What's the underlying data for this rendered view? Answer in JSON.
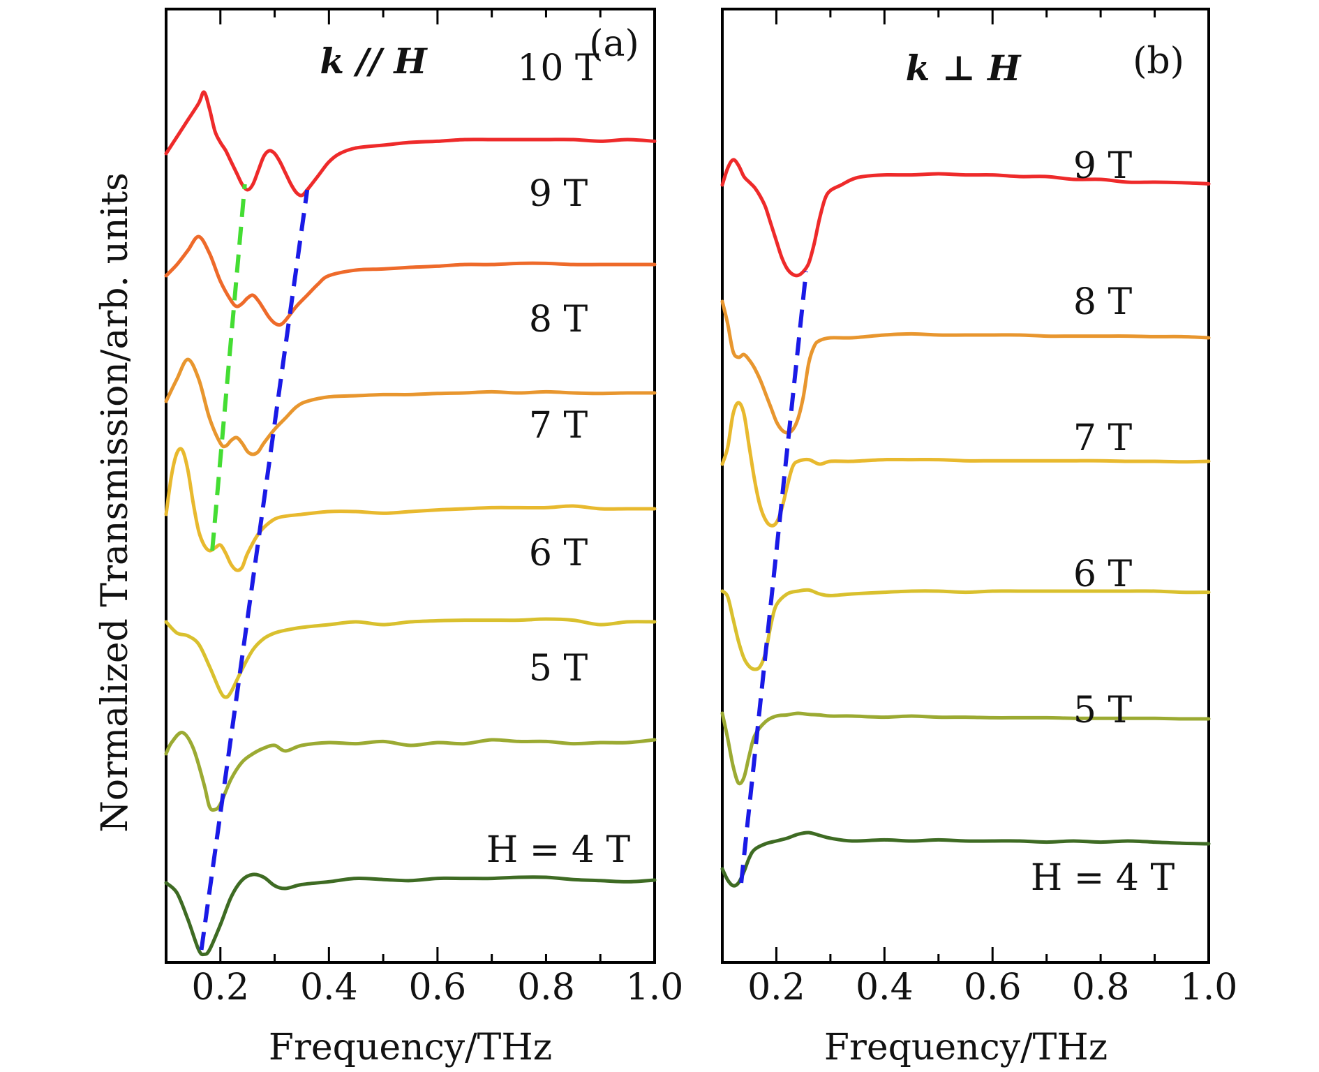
{
  "ylabel": "Normalized Transmission/arb. units",
  "chart_data": [
    {
      "type": "line",
      "panel_label": "(a)",
      "geometry_label": "k // H",
      "xlabel": "Frequency/THz",
      "xlim": [
        0.1,
        1.0
      ],
      "xticks": [
        "0.2",
        "0.4",
        "0.6",
        "0.8",
        "1.0"
      ],
      "yticks": "none",
      "grid": false,
      "series": [
        {
          "name": "H = 4 T",
          "color": "#3E6B23",
          "x": [
            0.1,
            0.12,
            0.14,
            0.16,
            0.17,
            0.18,
            0.2,
            0.22,
            0.24,
            0.26,
            0.28,
            0.3,
            0.32,
            0.35,
            0.4,
            0.45,
            0.5,
            0.55,
            0.6,
            0.65,
            0.7,
            0.75,
            0.8,
            0.85,
            0.9,
            0.95,
            1.0
          ],
          "y": [
            0.0,
            -0.18,
            -0.65,
            -1.2,
            -1.28,
            -1.2,
            -0.75,
            -0.25,
            0.05,
            0.15,
            0.1,
            -0.05,
            -0.1,
            -0.03,
            0.02,
            0.08,
            0.06,
            0.04,
            0.08,
            0.08,
            0.08,
            0.1,
            0.1,
            0.06,
            0.04,
            0.02,
            0.05
          ]
        },
        {
          "name": "5 T",
          "color": "#9BAA32",
          "x": [
            0.1,
            0.11,
            0.13,
            0.15,
            0.17,
            0.18,
            0.19,
            0.2,
            0.22,
            0.24,
            0.26,
            0.28,
            0.3,
            0.32,
            0.35,
            0.4,
            0.45,
            0.5,
            0.55,
            0.6,
            0.65,
            0.7,
            0.75,
            0.8,
            0.85,
            0.9,
            0.95,
            1.0
          ],
          "y": [
            0.0,
            0.2,
            0.38,
            0.1,
            -0.55,
            -0.95,
            -1.0,
            -0.9,
            -0.45,
            -0.15,
            0.0,
            0.1,
            0.15,
            0.05,
            0.15,
            0.2,
            0.18,
            0.22,
            0.15,
            0.2,
            0.18,
            0.25,
            0.22,
            0.22,
            0.18,
            0.2,
            0.2,
            0.25
          ]
        },
        {
          "name": "6 T",
          "color": "#D9C02E",
          "x": [
            0.1,
            0.12,
            0.14,
            0.16,
            0.18,
            0.2,
            0.21,
            0.22,
            0.24,
            0.26,
            0.28,
            0.3,
            0.32,
            0.35,
            0.4,
            0.45,
            0.5,
            0.55,
            0.6,
            0.65,
            0.7,
            0.75,
            0.8,
            0.85,
            0.9,
            0.95,
            1.0
          ],
          "y": [
            0.3,
            0.1,
            0.05,
            -0.1,
            -0.5,
            -0.95,
            -1.05,
            -0.95,
            -0.55,
            -0.2,
            0.0,
            0.1,
            0.15,
            0.2,
            0.25,
            0.3,
            0.25,
            0.3,
            0.32,
            0.33,
            0.33,
            0.33,
            0.35,
            0.33,
            0.25,
            0.3,
            0.3
          ]
        },
        {
          "name": "7 T",
          "color": "#E8B92E",
          "x": [
            0.1,
            0.11,
            0.12,
            0.13,
            0.14,
            0.15,
            0.16,
            0.17,
            0.18,
            0.19,
            0.2,
            0.21,
            0.22,
            0.23,
            0.24,
            0.25,
            0.27,
            0.29,
            0.31,
            0.35,
            0.4,
            0.45,
            0.5,
            0.55,
            0.6,
            0.65,
            0.7,
            0.75,
            0.8,
            0.85,
            0.9,
            0.95,
            1.0
          ],
          "y": [
            0.1,
            0.8,
            1.2,
            1.25,
            0.9,
            0.3,
            -0.2,
            -0.45,
            -0.55,
            -0.5,
            -0.45,
            -0.6,
            -0.8,
            -0.9,
            -0.85,
            -0.6,
            -0.25,
            -0.05,
            0.05,
            0.1,
            0.15,
            0.15,
            0.12,
            0.15,
            0.18,
            0.2,
            0.22,
            0.22,
            0.22,
            0.25,
            0.2,
            0.2,
            0.2
          ]
        },
        {
          "name": "8 T",
          "color": "#E8962E",
          "x": [
            0.1,
            0.12,
            0.14,
            0.16,
            0.18,
            0.2,
            0.21,
            0.22,
            0.23,
            0.24,
            0.25,
            0.26,
            0.27,
            0.28,
            0.3,
            0.32,
            0.34,
            0.36,
            0.4,
            0.45,
            0.5,
            0.55,
            0.6,
            0.65,
            0.7,
            0.75,
            0.8,
            0.85,
            0.9,
            0.95,
            1.0
          ],
          "y": [
            0.0,
            0.4,
            0.75,
            0.4,
            -0.3,
            -0.75,
            -0.8,
            -0.7,
            -0.65,
            -0.75,
            -0.9,
            -0.95,
            -0.9,
            -0.75,
            -0.5,
            -0.3,
            -0.1,
            0.0,
            0.08,
            0.1,
            0.12,
            0.12,
            0.14,
            0.15,
            0.17,
            0.15,
            0.17,
            0.15,
            0.14,
            0.15,
            0.15
          ]
        },
        {
          "name": "9 T",
          "color": "#EE6A2A",
          "x": [
            0.1,
            0.12,
            0.14,
            0.16,
            0.18,
            0.2,
            0.22,
            0.23,
            0.24,
            0.25,
            0.26,
            0.27,
            0.28,
            0.29,
            0.3,
            0.31,
            0.32,
            0.34,
            0.36,
            0.38,
            0.4,
            0.45,
            0.5,
            0.55,
            0.6,
            0.65,
            0.7,
            0.75,
            0.8,
            0.85,
            0.9,
            0.95,
            1.0
          ],
          "y": [
            0.0,
            0.2,
            0.45,
            0.7,
            0.4,
            -0.1,
            -0.45,
            -0.55,
            -0.5,
            -0.4,
            -0.35,
            -0.45,
            -0.6,
            -0.75,
            -0.85,
            -0.88,
            -0.8,
            -0.55,
            -0.35,
            -0.15,
            0.0,
            0.1,
            0.12,
            0.15,
            0.17,
            0.2,
            0.2,
            0.22,
            0.22,
            0.2,
            0.2,
            0.2,
            0.2
          ]
        },
        {
          "name": "10 T",
          "color": "#EE2A2A",
          "x": [
            0.1,
            0.12,
            0.14,
            0.16,
            0.17,
            0.18,
            0.19,
            0.2,
            0.21,
            0.22,
            0.23,
            0.24,
            0.25,
            0.26,
            0.27,
            0.28,
            0.29,
            0.3,
            0.31,
            0.32,
            0.33,
            0.34,
            0.35,
            0.36,
            0.38,
            0.4,
            0.42,
            0.45,
            0.5,
            0.55,
            0.6,
            0.65,
            0.7,
            0.75,
            0.8,
            0.85,
            0.9,
            0.95,
            1.0
          ],
          "y": [
            0.0,
            0.3,
            0.6,
            0.9,
            1.1,
            0.8,
            0.4,
            0.2,
            0.05,
            -0.15,
            -0.35,
            -0.55,
            -0.65,
            -0.55,
            -0.3,
            -0.05,
            0.05,
            0.0,
            -0.15,
            -0.35,
            -0.55,
            -0.7,
            -0.75,
            -0.65,
            -0.4,
            -0.15,
            0.0,
            0.1,
            0.15,
            0.2,
            0.22,
            0.25,
            0.25,
            0.25,
            0.25,
            0.25,
            0.22,
            0.25,
            0.22
          ]
        }
      ],
      "overlays": [
        {
          "name": "green-guide",
          "color": "#44DD33",
          "x": [
            0.185,
            0.245
          ]
        },
        {
          "name": "blue-guide",
          "color": "#1A1AE6",
          "x": [
            0.165,
            0.36
          ]
        }
      ]
    },
    {
      "type": "line",
      "panel_label": "(b)",
      "geometry_label": "k ⊥ H",
      "xlabel": "Frequency/THz",
      "xlim": [
        0.1,
        1.0
      ],
      "xticks": [
        "0.2",
        "0.4",
        "0.6",
        "0.8",
        "1.0"
      ],
      "yticks": "none",
      "grid": false,
      "series": [
        {
          "name": "H = 4 T",
          "color": "#3E6B23",
          "x": [
            0.1,
            0.11,
            0.12,
            0.13,
            0.14,
            0.15,
            0.16,
            0.18,
            0.2,
            0.22,
            0.24,
            0.26,
            0.28,
            0.3,
            0.34,
            0.4,
            0.45,
            0.5,
            0.55,
            0.6,
            0.65,
            0.7,
            0.75,
            0.8,
            0.85,
            0.9,
            0.95,
            1.0
          ],
          "y": [
            0.0,
            -0.2,
            -0.3,
            -0.25,
            -0.05,
            0.2,
            0.35,
            0.45,
            0.5,
            0.55,
            0.62,
            0.65,
            0.6,
            0.55,
            0.5,
            0.52,
            0.5,
            0.52,
            0.5,
            0.5,
            0.5,
            0.48,
            0.5,
            0.48,
            0.5,
            0.48,
            0.46,
            0.45
          ]
        },
        {
          "name": "5 T",
          "color": "#9BAA32",
          "x": [
            0.1,
            0.11,
            0.12,
            0.13,
            0.14,
            0.15,
            0.16,
            0.18,
            0.2,
            0.22,
            0.24,
            0.26,
            0.28,
            0.3,
            0.34,
            0.4,
            0.45,
            0.5,
            0.55,
            0.6,
            0.65,
            0.7,
            0.75,
            0.8,
            0.85,
            0.9,
            0.95,
            1.0
          ],
          "y": [
            0.35,
            -0.1,
            -0.6,
            -0.9,
            -0.8,
            -0.4,
            -0.05,
            0.2,
            0.3,
            0.32,
            0.35,
            0.33,
            0.32,
            0.3,
            0.3,
            0.28,
            0.3,
            0.28,
            0.28,
            0.27,
            0.27,
            0.27,
            0.26,
            0.26,
            0.26,
            0.26,
            0.25,
            0.25
          ]
        },
        {
          "name": "6 T",
          "color": "#D9C02E",
          "x": [
            0.1,
            0.11,
            0.12,
            0.13,
            0.14,
            0.15,
            0.16,
            0.17,
            0.18,
            0.19,
            0.2,
            0.22,
            0.24,
            0.26,
            0.28,
            0.3,
            0.34,
            0.4,
            0.45,
            0.5,
            0.55,
            0.6,
            0.65,
            0.7,
            0.75,
            0.8,
            0.85,
            0.9,
            0.95,
            1.0
          ],
          "y": [
            0.1,
            0.0,
            -0.4,
            -0.8,
            -1.1,
            -1.25,
            -1.3,
            -1.25,
            -1.0,
            -0.5,
            -0.15,
            0.05,
            0.1,
            0.12,
            0.05,
            0.02,
            0.05,
            0.08,
            0.1,
            0.1,
            0.08,
            0.1,
            0.1,
            0.1,
            0.1,
            0.1,
            0.1,
            0.1,
            0.08,
            0.08
          ]
        },
        {
          "name": "7 T",
          "color": "#E8B92E",
          "x": [
            0.1,
            0.11,
            0.12,
            0.13,
            0.14,
            0.15,
            0.16,
            0.17,
            0.18,
            0.19,
            0.2,
            0.21,
            0.22,
            0.23,
            0.24,
            0.26,
            0.28,
            0.3,
            0.34,
            0.4,
            0.45,
            0.5,
            0.55,
            0.6,
            0.65,
            0.7,
            0.75,
            0.8,
            0.85,
            0.9,
            0.95,
            1.0
          ],
          "y": [
            0.0,
            0.3,
            0.9,
            1.1,
            0.9,
            0.3,
            -0.3,
            -0.75,
            -1.0,
            -1.1,
            -1.05,
            -0.8,
            -0.4,
            -0.05,
            0.05,
            0.08,
            0.0,
            0.05,
            0.05,
            0.08,
            0.08,
            0.08,
            0.06,
            0.06,
            0.06,
            0.06,
            0.06,
            0.06,
            0.05,
            0.05,
            0.04,
            0.05
          ]
        },
        {
          "name": "8 T",
          "color": "#E8962E",
          "x": [
            0.1,
            0.11,
            0.12,
            0.13,
            0.14,
            0.15,
            0.16,
            0.17,
            0.18,
            0.19,
            0.2,
            0.21,
            0.22,
            0.23,
            0.24,
            0.25,
            0.26,
            0.27,
            0.28,
            0.3,
            0.34,
            0.4,
            0.45,
            0.5,
            0.55,
            0.6,
            0.65,
            0.7,
            0.75,
            0.8,
            0.85,
            0.9,
            0.95,
            1.0
          ],
          "y": [
            0.6,
            0.2,
            -0.3,
            -0.4,
            -0.35,
            -0.45,
            -0.6,
            -0.8,
            -1.05,
            -1.3,
            -1.55,
            -1.7,
            -1.75,
            -1.7,
            -1.5,
            -1.1,
            -0.5,
            -0.2,
            -0.1,
            -0.05,
            -0.05,
            0.0,
            0.02,
            0.0,
            0.0,
            0.0,
            0.0,
            -0.02,
            -0.02,
            -0.02,
            -0.02,
            -0.03,
            -0.03,
            -0.05
          ]
        },
        {
          "name": "9 T",
          "color": "#EE2A2A",
          "x": [
            0.1,
            0.11,
            0.12,
            0.13,
            0.14,
            0.15,
            0.16,
            0.17,
            0.18,
            0.19,
            0.2,
            0.21,
            0.22,
            0.23,
            0.24,
            0.25,
            0.26,
            0.27,
            0.28,
            0.29,
            0.3,
            0.32,
            0.34,
            0.36,
            0.4,
            0.45,
            0.5,
            0.55,
            0.6,
            0.65,
            0.7,
            0.75,
            0.8,
            0.85,
            0.9,
            0.95,
            1.0
          ],
          "y": [
            0.0,
            0.3,
            0.45,
            0.35,
            0.15,
            0.05,
            -0.05,
            -0.2,
            -0.4,
            -0.7,
            -1.0,
            -1.3,
            -1.5,
            -1.6,
            -1.62,
            -1.55,
            -1.4,
            -1.05,
            -0.6,
            -0.25,
            -0.1,
            0.0,
            0.1,
            0.15,
            0.18,
            0.18,
            0.2,
            0.18,
            0.18,
            0.15,
            0.15,
            0.1,
            0.1,
            0.05,
            0.05,
            0.04,
            0.02
          ]
        }
      ],
      "overlays": [
        {
          "name": "blue-guide",
          "color": "#1A1AE6",
          "x": [
            0.135,
            0.255
          ]
        }
      ]
    }
  ]
}
